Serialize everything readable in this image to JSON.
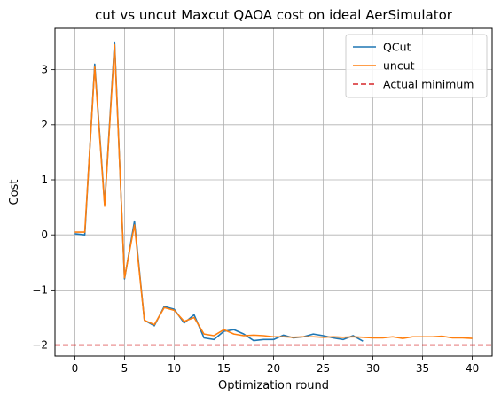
{
  "chart_data": {
    "type": "line",
    "title": "cut vs uncut Maxcut QAOA cost on ideal AerSimulator",
    "xlabel": "Optimization round",
    "ylabel": "Cost",
    "xlim": [
      -2,
      42
    ],
    "ylim": [
      -2.2,
      3.75
    ],
    "xticks": [
      0,
      5,
      10,
      15,
      20,
      25,
      30,
      35,
      40
    ],
    "yticks": [
      -2,
      -1,
      0,
      1,
      2,
      3
    ],
    "ytick_labels": [
      "−2",
      "−1",
      "0",
      "1",
      "2",
      "3"
    ],
    "grid": true,
    "legend_position": "top-right",
    "series": [
      {
        "name": "QCut",
        "color": "#1f77b4",
        "style": "solid",
        "x": [
          0,
          1,
          2,
          3,
          4,
          5,
          6,
          7,
          8,
          9,
          10,
          11,
          12,
          13,
          14,
          15,
          16,
          17,
          18,
          19,
          20,
          21,
          22,
          23,
          24,
          25,
          26,
          27,
          28,
          29
        ],
        "values": [
          0.02,
          0.0,
          3.1,
          0.55,
          3.5,
          -0.8,
          0.25,
          -1.55,
          -1.65,
          -1.3,
          -1.35,
          -1.6,
          -1.45,
          -1.87,
          -1.9,
          -1.75,
          -1.72,
          -1.8,
          -1.92,
          -1.9,
          -1.9,
          -1.82,
          -1.87,
          -1.85,
          -1.8,
          -1.83,
          -1.87,
          -1.9,
          -1.83,
          -1.93
        ]
      },
      {
        "name": "uncut",
        "color": "#ff7f0e",
        "style": "solid",
        "x": [
          0,
          1,
          2,
          3,
          4,
          5,
          6,
          7,
          8,
          9,
          10,
          11,
          12,
          13,
          14,
          15,
          16,
          17,
          18,
          19,
          20,
          21,
          22,
          23,
          24,
          25,
          26,
          27,
          28,
          29,
          30,
          31,
          32,
          33,
          34,
          35,
          36,
          37,
          38,
          39,
          40
        ],
        "values": [
          0.05,
          0.05,
          3.05,
          0.52,
          3.45,
          -0.78,
          0.18,
          -1.55,
          -1.63,
          -1.32,
          -1.37,
          -1.57,
          -1.5,
          -1.8,
          -1.83,
          -1.72,
          -1.8,
          -1.83,
          -1.82,
          -1.83,
          -1.85,
          -1.85,
          -1.86,
          -1.85,
          -1.85,
          -1.86,
          -1.85,
          -1.86,
          -1.85,
          -1.86,
          -1.87,
          -1.87,
          -1.85,
          -1.88,
          -1.85,
          -1.85,
          -1.85,
          -1.84,
          -1.87,
          -1.87,
          -1.88
        ]
      }
    ],
    "reference_lines": [
      {
        "name": "Actual minimum",
        "y": -2,
        "color": "#d62728",
        "style": "dashed"
      }
    ]
  }
}
